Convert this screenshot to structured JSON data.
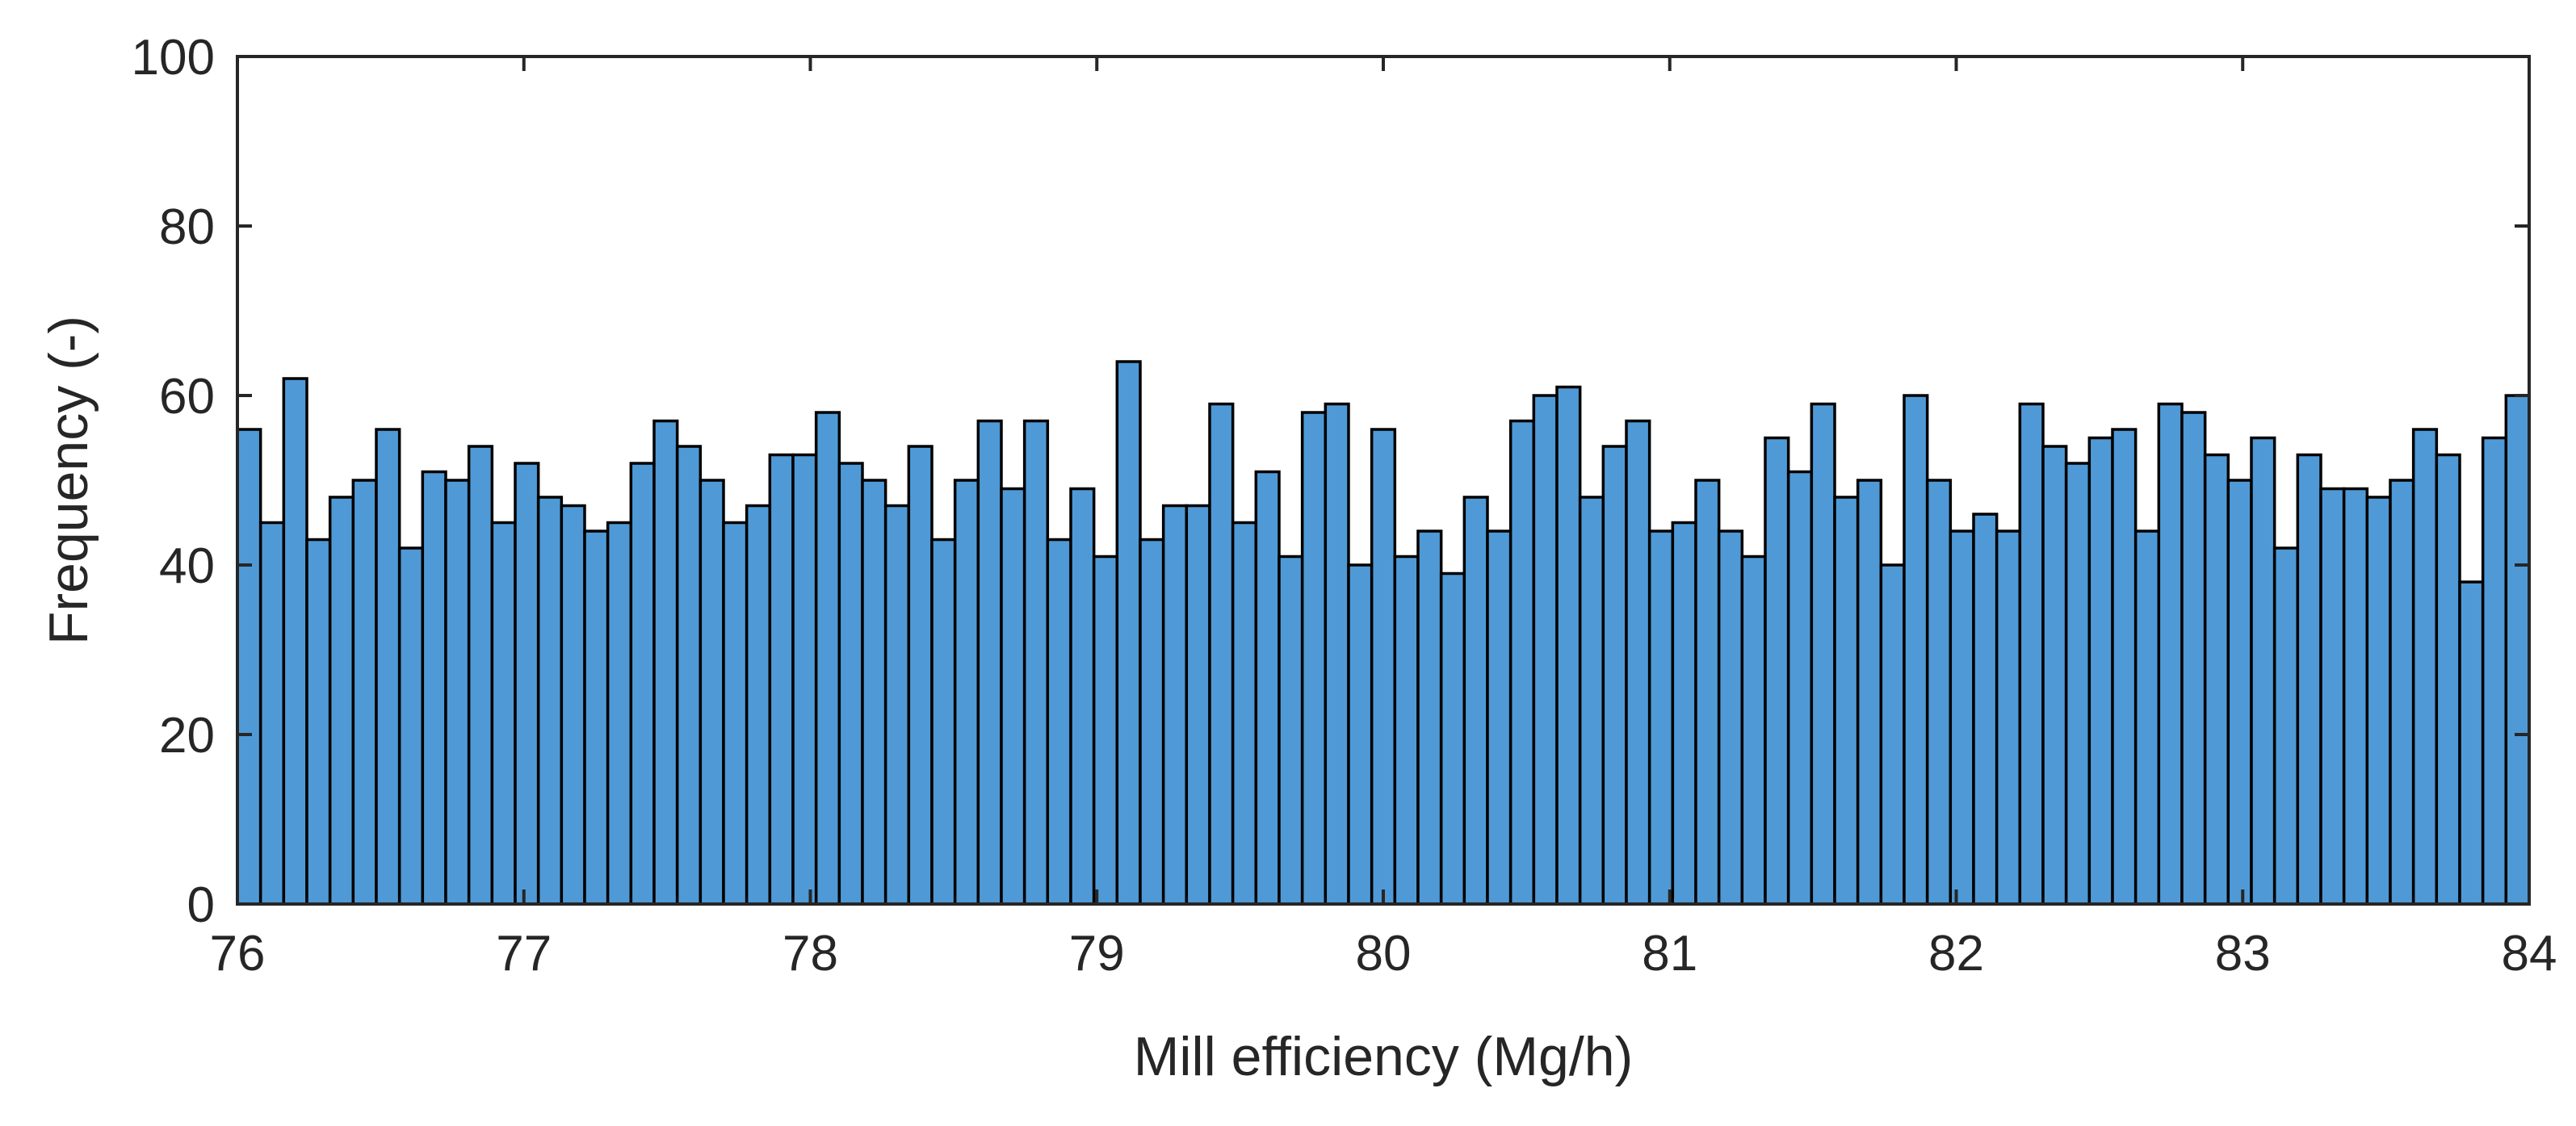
{
  "colors": {
    "bar_fill": "#4f9ad6",
    "bar_edge": "#000000",
    "axis": "#262626",
    "background": "#ffffff"
  },
  "chart_data": {
    "type": "bar",
    "subtype": "histogram",
    "title": "",
    "xlabel": "Mill efficiency (Mg/h)",
    "ylabel": "Frequency (-)",
    "xlim": [
      76,
      84
    ],
    "ylim": [
      0,
      100
    ],
    "x_ticks": [
      76,
      77,
      78,
      79,
      80,
      81,
      82,
      83,
      84
    ],
    "x_tick_labels": [
      "76",
      "77",
      "78",
      "79",
      "80",
      "81",
      "82",
      "83",
      "84"
    ],
    "y_ticks": [
      0,
      20,
      40,
      60,
      80,
      100
    ],
    "y_tick_labels": [
      "0",
      "20",
      "40",
      "60",
      "80",
      "100"
    ],
    "bin_width": 0.0808,
    "bin_start": 76,
    "grid": false,
    "values": [
      56,
      45,
      62,
      43,
      48,
      50,
      56,
      42,
      51,
      50,
      54,
      45,
      52,
      48,
      47,
      44,
      45,
      52,
      57,
      54,
      50,
      45,
      47,
      53,
      53,
      58,
      52,
      50,
      47,
      54,
      43,
      50,
      57,
      49,
      57,
      43,
      49,
      41,
      64,
      43,
      47,
      47,
      59,
      45,
      51,
      41,
      58,
      59,
      40,
      56,
      41,
      44,
      39,
      48,
      44,
      57,
      60,
      61,
      48,
      54,
      57,
      44,
      45,
      50,
      44,
      41,
      55,
      51,
      59,
      48,
      50,
      40,
      60,
      50,
      44,
      46,
      44,
      59,
      54,
      52,
      55,
      56,
      44,
      59,
      58,
      53,
      50,
      55,
      42,
      53,
      49,
      49,
      48,
      50,
      56,
      53,
      38,
      55,
      60
    ]
  }
}
